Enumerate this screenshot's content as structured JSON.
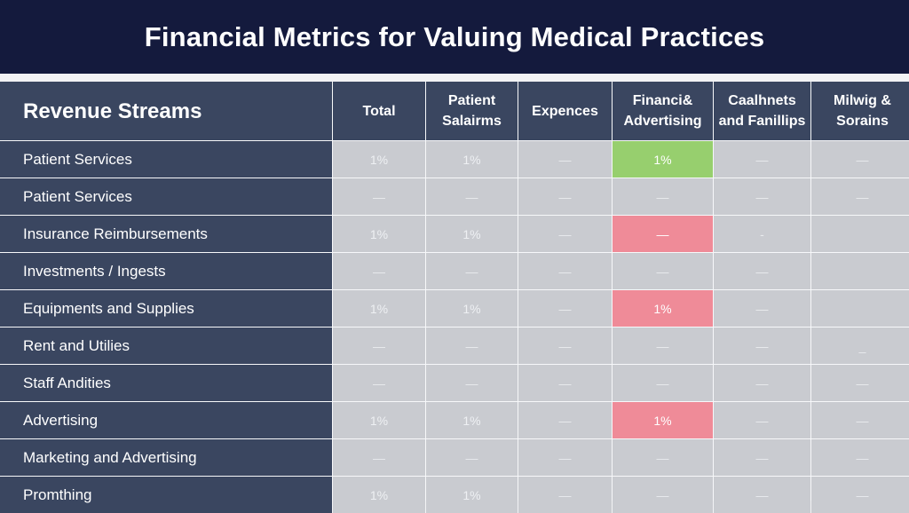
{
  "title": "Financial Metrics for Valuing Medical Practices",
  "columns": [
    "Revenue Streams",
    "Total",
    "Patient Salairms",
    "Expences",
    "Financi& Advertising",
    "Caalhnets and Fanillips",
    "Milwig & Sorains"
  ],
  "colors": {
    "title_bg": "#141a3d",
    "header_bg": "#3a4660",
    "cell_bg": "#c9cbd0",
    "highlight_green": "#97cf6e",
    "highlight_pink": "#ef8b98"
  },
  "rows": [
    {
      "label": "Patient Services",
      "cells": [
        "1%",
        "1%",
        "—",
        "1%",
        "—",
        "—"
      ],
      "highlight": "green"
    },
    {
      "label": "Patient Services",
      "cells": [
        "—",
        "—",
        "—",
        "—",
        "—",
        "—"
      ],
      "highlight": ""
    },
    {
      "label": "Insurance Reimbursements",
      "cells": [
        "1%",
        "1%",
        "—",
        "—",
        "-",
        ""
      ],
      "highlight": "pink"
    },
    {
      "label": "Investments / Ingests",
      "cells": [
        "—",
        "—",
        "—",
        "—",
        "—",
        ""
      ],
      "highlight": ""
    },
    {
      "label": "Equipments and Supplies",
      "cells": [
        "1%",
        "1%",
        "—",
        "1%",
        "—",
        ""
      ],
      "highlight": "pink"
    },
    {
      "label": "Rent and Utilies",
      "cells": [
        "—",
        "—",
        "—",
        "—",
        "—",
        "_"
      ],
      "highlight": ""
    },
    {
      "label": "Staff Andities",
      "cells": [
        "—",
        "—",
        "—",
        "—",
        "—",
        "—"
      ],
      "highlight": ""
    },
    {
      "label": "Advertising",
      "cells": [
        "1%",
        "1%",
        "—",
        "1%",
        "—",
        "—"
      ],
      "highlight": "pink"
    },
    {
      "label": "Marketing and Advertising",
      "cells": [
        "—",
        "—",
        "—",
        "—",
        "—",
        "—"
      ],
      "highlight": ""
    },
    {
      "label": "Promthing",
      "cells": [
        "1%",
        "1%",
        "—",
        "—",
        "—",
        "—"
      ],
      "highlight": ""
    }
  ]
}
